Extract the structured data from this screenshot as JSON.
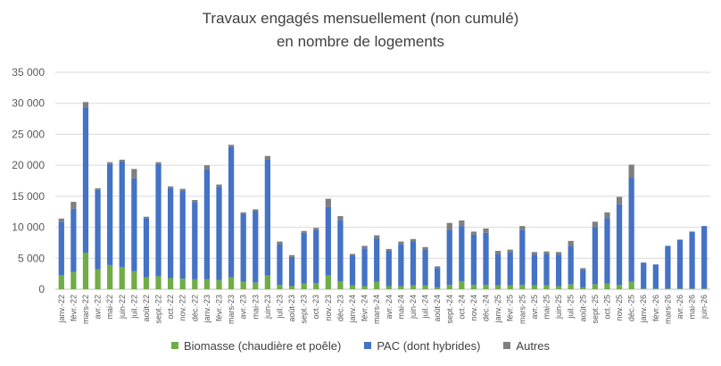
{
  "chart_data": {
    "type": "bar",
    "stacked": true,
    "title": "Travaux engagés mensuellement (non cumulé)",
    "subtitle": "en nombre de logements",
    "ylim": [
      0,
      35000
    ],
    "yticks": [
      "0",
      "5 000",
      "10 000",
      "15 000",
      "20 000",
      "25 000",
      "30 000",
      "35 000"
    ],
    "ytick_values": [
      0,
      5000,
      10000,
      15000,
      20000,
      25000,
      30000,
      35000
    ],
    "grid": true,
    "legend_position": "bottom",
    "categories": [
      "janv.-22",
      "févr.-22",
      "mars-22",
      "avr.-22",
      "mai-22",
      "juin-22",
      "juil.-22",
      "août-22",
      "sept.-22",
      "oct.-22",
      "nov.-22",
      "déc.-22",
      "janv.-23",
      "févr.-23",
      "mars-23",
      "avr.-23",
      "mai-23",
      "juin-23",
      "juil.-23",
      "août-23",
      "sept.-23",
      "oct.-23",
      "nov.-23",
      "déc.-23",
      "janv.-24",
      "févr.-24",
      "mars-24",
      "avr.-24",
      "mai-24",
      "juin-24",
      "juil.-24",
      "août-24",
      "sept.-24",
      "oct.-24",
      "nov.-24",
      "déc.-24",
      "janv.-25",
      "févr.-25",
      "mars-25",
      "avr.-25",
      "mai-25",
      "juin-25",
      "juil.-25",
      "août-25",
      "sept.-25",
      "oct.-25",
      "nov.-25",
      "déc.-25",
      "janv.-26",
      "févr.-26",
      "mars-26",
      "avr.-26",
      "mai-26",
      "juin-26"
    ],
    "series": [
      {
        "name": "Biomasse (chaudière et poêle)",
        "color": "#70ad47",
        "values": [
          2300,
          2800,
          5900,
          3200,
          3900,
          3600,
          2900,
          1900,
          2100,
          1800,
          1700,
          1600,
          1600,
          1500,
          1900,
          1200,
          1100,
          2200,
          700,
          500,
          900,
          1000,
          2200,
          1300,
          600,
          500,
          1200,
          500,
          500,
          600,
          600,
          300,
          700,
          1300,
          700,
          700,
          600,
          600,
          700,
          600,
          600,
          500,
          800,
          300,
          800,
          900,
          700,
          1200,
          100,
          100,
          100,
          100,
          100,
          100
        ]
      },
      {
        "name": "PAC (dont hybrides)",
        "color": "#4472c4",
        "values": [
          8600,
          10200,
          23400,
          12800,
          16300,
          17000,
          15000,
          9600,
          18100,
          14500,
          14200,
          12500,
          17800,
          15000,
          21100,
          10900,
          11500,
          18800,
          6500,
          4700,
          8200,
          8600,
          11100,
          9900,
          4800,
          6100,
          7000,
          5700,
          6800,
          7100,
          5800,
          3100,
          8900,
          8900,
          8100,
          8400,
          5100,
          5400,
          8900,
          5000,
          5100,
          5100,
          6200,
          2800,
          9200,
          10600,
          13000,
          16800,
          4200,
          3900,
          6900,
          7900,
          9200,
          10100
        ]
      },
      {
        "name": "Autres",
        "color": "#7f7f7f",
        "values": [
          500,
          1100,
          900,
          300,
          300,
          300,
          1500,
          200,
          300,
          300,
          300,
          300,
          600,
          400,
          300,
          300,
          300,
          500,
          500,
          300,
          300,
          300,
          1300,
          600,
          300,
          400,
          500,
          300,
          400,
          400,
          400,
          300,
          1100,
          900,
          500,
          700,
          500,
          400,
          600,
          400,
          400,
          400,
          800,
          300,
          900,
          900,
          1200,
          2100,
          0,
          0,
          0,
          0,
          0,
          0
        ]
      }
    ]
  }
}
